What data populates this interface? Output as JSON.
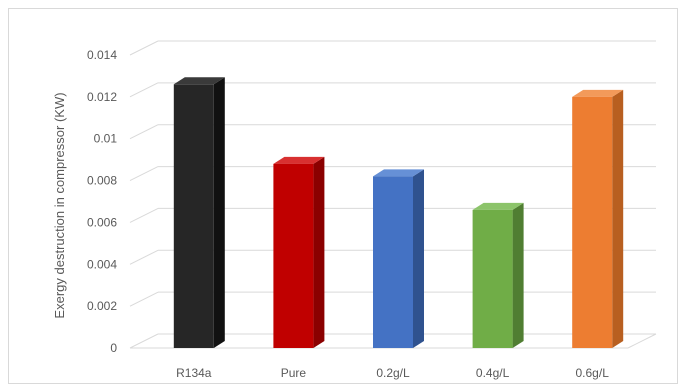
{
  "chart_data": {
    "type": "bar",
    "title": "",
    "xlabel": "",
    "ylabel": "Exergy destruction in compressor (KW)",
    "categories": [
      "R134a",
      "Pure",
      "0.2g/L",
      "0.4g/L",
      "0.6g/L"
    ],
    "values": [
      0.0126,
      0.0088,
      0.0082,
      0.0066,
      0.012
    ],
    "ylim": [
      0,
      0.014
    ],
    "yticks": [
      0,
      0.002,
      0.004,
      0.006,
      0.008,
      0.01,
      0.012,
      0.014
    ],
    "ytick_labels": [
      "0",
      "0.002",
      "0.004",
      "0.006",
      "0.008",
      "0.01",
      "0.012",
      "0.014"
    ],
    "grid": true,
    "style": "3d-column",
    "bar_colors": [
      {
        "front": "#262626",
        "side": "#111111",
        "top": "#3a3a3a"
      },
      {
        "front": "#c00000",
        "side": "#8b0000",
        "top": "#d83030"
      },
      {
        "front": "#4472c4",
        "side": "#2f528f",
        "top": "#6690d6"
      },
      {
        "front": "#70ad47",
        "side": "#507e32",
        "top": "#8cc46a"
      },
      {
        "front": "#ed7d31",
        "side": "#b85f20",
        "top": "#f39a5a"
      }
    ],
    "gridline_color": "#d9d9d9",
    "text_color": "#595959"
  }
}
